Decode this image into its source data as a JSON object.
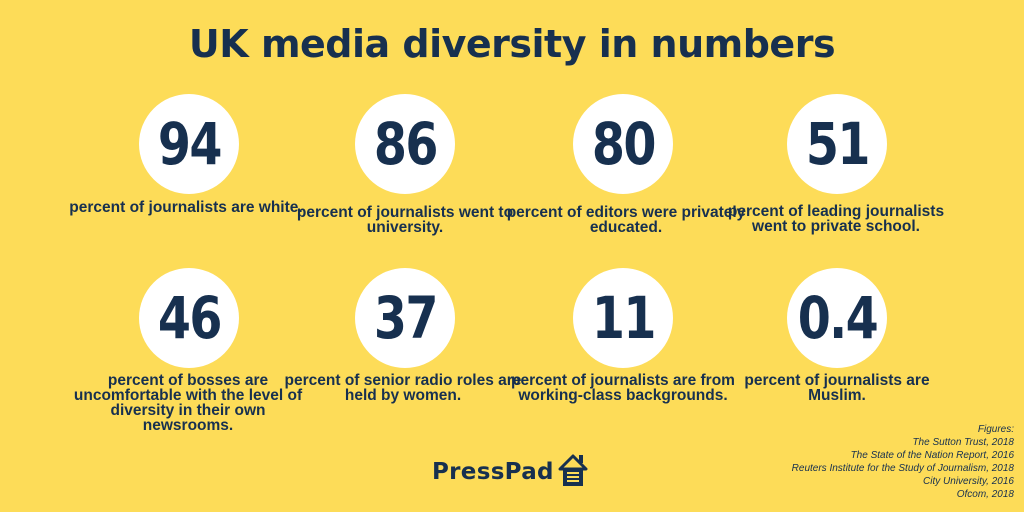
{
  "title": "UK media diversity in numbers",
  "stats": [
    {
      "number": "94",
      "caption": "percent of journalists are white."
    },
    {
      "number": "86",
      "caption": "percent of journalists went to university."
    },
    {
      "number": "80",
      "caption": "percent of editors were privately educated."
    },
    {
      "number": "51",
      "caption": "percent of leading journalists went to private school."
    },
    {
      "number": "46",
      "caption": "percent of bosses are uncomfortable with the level of diversity in their own newsrooms."
    },
    {
      "number": "37",
      "caption": "percent of senior radio roles are held by women."
    },
    {
      "number": "11",
      "caption": "percent of journalists are from working-class backgrounds."
    },
    {
      "number": "0.4",
      "caption": "percent of journalists are Muslim."
    }
  ],
  "sources": {
    "heading": "Figures:",
    "items": [
      "The Sutton Trust, 2018",
      "The State of the Nation Report, 2016",
      "Reuters Institute for the Study of Journalism, 2018",
      "City University, 2016",
      "Ofcom, 2018"
    ]
  },
  "logo": {
    "text": "PressPad",
    "icon": "house-icon"
  },
  "colors": {
    "background": "#FDDC58",
    "navy": "#17304F",
    "circle": "#FFFFFF"
  }
}
